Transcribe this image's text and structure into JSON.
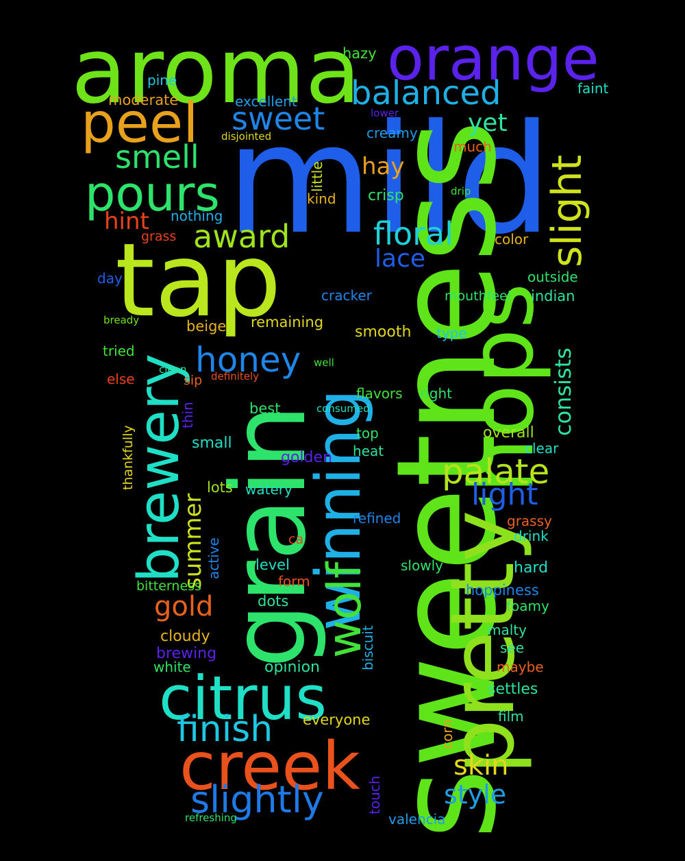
{
  "words": [
    {
      "text": "mild",
      "color": "#1f5ee8",
      "weight": 1.0
    },
    {
      "text": "sweetness",
      "color": "#5fe41a",
      "weight": 0.95
    },
    {
      "text": "aroma",
      "color": "#6ee31a",
      "weight": 0.85
    },
    {
      "text": "tap",
      "color": "#b9e61c",
      "weight": 0.85
    },
    {
      "text": "grain",
      "color": "#2ee36b",
      "weight": 0.85
    },
    {
      "text": "pretty",
      "color": "#8ee11c",
      "weight": 0.8
    },
    {
      "text": "hops",
      "color": "#5fe41a",
      "weight": 0.8
    },
    {
      "text": "orange",
      "color": "#5a22ea",
      "weight": 0.6
    },
    {
      "text": "creek",
      "color": "#e9521c",
      "weight": 0.6
    },
    {
      "text": "citrus",
      "color": "#1fe0c6",
      "weight": 0.6
    },
    {
      "text": "winning",
      "color": "#1fb0e6",
      "weight": 0.6
    },
    {
      "text": "brewery",
      "color": "#1fe0c6",
      "weight": 0.55
    },
    {
      "text": "peel",
      "color": "#e8a11c",
      "weight": 0.5
    },
    {
      "text": "wolf",
      "color": "#42e23a",
      "weight": 0.45
    },
    {
      "text": "pours",
      "color": "#2ee36b",
      "weight": 0.45
    },
    {
      "text": "slight",
      "color": "#cfe31c",
      "weight": 0.4
    },
    {
      "text": "slightly",
      "color": "#1f7ae8",
      "weight": 0.35
    },
    {
      "text": "balanced",
      "color": "#1fb0e6",
      "weight": 0.35
    },
    {
      "text": "finish",
      "color": "#1fc8e2",
      "weight": 0.35
    },
    {
      "text": "palate",
      "color": "#b6e41c",
      "weight": 0.33
    },
    {
      "text": "honey",
      "color": "#1f86e8",
      "weight": 0.33
    },
    {
      "text": "floral",
      "color": "#1fd0d8",
      "weight": 0.3
    },
    {
      "text": "sweet",
      "color": "#1f86e8",
      "weight": 0.3
    },
    {
      "text": "award",
      "color": "#9fe31c",
      "weight": 0.3
    },
    {
      "text": "smell",
      "color": "#2ee36b",
      "weight": 0.3
    },
    {
      "text": "light",
      "color": "#1f5ee8",
      "weight": 0.3
    },
    {
      "text": "skin",
      "color": "#e3d81c",
      "weight": 0.27
    },
    {
      "text": "style",
      "color": "#1f9ee8",
      "weight": 0.25
    },
    {
      "text": "gold",
      "color": "#e9621c",
      "weight": 0.25
    },
    {
      "text": "summer",
      "color": "#cfe31c",
      "weight": 0.25
    },
    {
      "text": "consists",
      "color": "#2ee3a0",
      "weight": 0.22
    },
    {
      "text": "lace",
      "color": "#1f5ee8",
      "weight": 0.23
    },
    {
      "text": "hint",
      "color": "#e9421c",
      "weight": 0.22
    },
    {
      "text": "hay",
      "color": "#e8a11c",
      "weight": 0.22
    },
    {
      "text": "yet",
      "color": "#2ee3a0",
      "weight": 0.22
    },
    {
      "text": "excellent",
      "color": "#1f9ee8",
      "weight": 0.12
    },
    {
      "text": "moderate",
      "color": "#e8a11c",
      "weight": 0.12
    },
    {
      "text": "pine",
      "color": "#1fc8e2",
      "weight": 0.12
    },
    {
      "text": "hazy",
      "color": "#42e23a",
      "weight": 0.12
    },
    {
      "text": "faint",
      "color": "#1fe0c6",
      "weight": 0.12
    },
    {
      "text": "creamy",
      "color": "#1f9ee8",
      "weight": 0.12
    },
    {
      "text": "lower",
      "color": "#5a22ea",
      "weight": 0.08
    },
    {
      "text": "disjointed",
      "color": "#e3d81c",
      "weight": 0.08
    },
    {
      "text": "much",
      "color": "#e9621c",
      "weight": 0.12
    },
    {
      "text": "little",
      "color": "#cfe31c",
      "weight": 0.12
    },
    {
      "text": "kind",
      "color": "#e8b31c",
      "weight": 0.12
    },
    {
      "text": "crisp",
      "color": "#2ee36b",
      "weight": 0.12
    },
    {
      "text": "drip",
      "color": "#42e23a",
      "weight": 0.08
    },
    {
      "text": "nothing",
      "color": "#1fb0e6",
      "weight": 0.12
    },
    {
      "text": "grass",
      "color": "#e9421c",
      "weight": 0.11
    },
    {
      "text": "color",
      "color": "#e8b31c",
      "weight": 0.11
    },
    {
      "text": "day",
      "color": "#1f5ee8",
      "weight": 0.11
    },
    {
      "text": "outside",
      "color": "#2ee36b",
      "weight": 0.12
    },
    {
      "text": "cracker",
      "color": "#1f86e8",
      "weight": 0.11
    },
    {
      "text": "mouthfeel",
      "color": "#2ee36b",
      "weight": 0.11
    },
    {
      "text": "indian",
      "color": "#2ee3a0",
      "weight": 0.12
    },
    {
      "text": "bready",
      "color": "#6ee31a",
      "weight": 0.08
    },
    {
      "text": "beige",
      "color": "#e8b31c",
      "weight": 0.12
    },
    {
      "text": "remaining",
      "color": "#e3d81c",
      "weight": 0.12
    },
    {
      "text": "smooth",
      "color": "#e3d81c",
      "weight": 0.12
    },
    {
      "text": "type",
      "color": "#1fc8e2",
      "weight": 0.11
    },
    {
      "text": "tried",
      "color": "#42e23a",
      "weight": 0.11
    },
    {
      "text": "well",
      "color": "#42e23a",
      "weight": 0.08
    },
    {
      "text": "else",
      "color": "#e9421c",
      "weight": 0.11
    },
    {
      "text": "clean",
      "color": "#2ee3a0",
      "weight": 0.08
    },
    {
      "text": "definitely",
      "color": "#e9521c",
      "weight": 0.08
    },
    {
      "text": "sip",
      "color": "#e9621c",
      "weight": 0.11
    },
    {
      "text": "flavors",
      "color": "#42e23a",
      "weight": 0.11
    },
    {
      "text": "right",
      "color": "#2ee36b",
      "weight": 0.11
    },
    {
      "text": "thin",
      "color": "#5a22ea",
      "weight": 0.11
    },
    {
      "text": "best",
      "color": "#2ee36b",
      "weight": 0.12
    },
    {
      "text": "consumed",
      "color": "#1fe0c6",
      "weight": 0.08
    },
    {
      "text": "thankfully",
      "color": "#e3d81c",
      "weight": 0.11
    },
    {
      "text": "top",
      "color": "#2ee36b",
      "weight": 0.11
    },
    {
      "text": "overall",
      "color": "#9fe31c",
      "weight": 0.12
    },
    {
      "text": "small",
      "color": "#1fe0c6",
      "weight": 0.12
    },
    {
      "text": "golden",
      "color": "#5a22ea",
      "weight": 0.12
    },
    {
      "text": "heat",
      "color": "#2ee3a0",
      "weight": 0.11
    },
    {
      "text": "clear",
      "color": "#1fe0c6",
      "weight": 0.11
    },
    {
      "text": "lots",
      "color": "#9fe31c",
      "weight": 0.12
    },
    {
      "text": "watery",
      "color": "#1fe0c6",
      "weight": 0.11
    },
    {
      "text": "refined",
      "color": "#1f86e8",
      "weight": 0.11
    },
    {
      "text": "grassy",
      "color": "#e9621c",
      "weight": 0.11
    },
    {
      "text": "drink",
      "color": "#1fe0c6",
      "weight": 0.11
    },
    {
      "text": "active",
      "color": "#1f86e8",
      "weight": 0.11
    },
    {
      "text": "ca",
      "color": "#e9421c",
      "weight": 0.11
    },
    {
      "text": "level",
      "color": "#1fe0c6",
      "weight": 0.12
    },
    {
      "text": "slowly",
      "color": "#2ee36b",
      "weight": 0.11
    },
    {
      "text": "hard",
      "color": "#1fe0c6",
      "weight": 0.12
    },
    {
      "text": "form",
      "color": "#e9521c",
      "weight": 0.11
    },
    {
      "text": "bitterness",
      "color": "#42e23a",
      "weight": 0.11
    },
    {
      "text": "hoppiness",
      "color": "#1f86e8",
      "weight": 0.12
    },
    {
      "text": "dots",
      "color": "#2ee3a0",
      "weight": 0.11
    },
    {
      "text": "foamy",
      "color": "#2ee36b",
      "weight": 0.11
    },
    {
      "text": "biscuit",
      "color": "#1fb0e6",
      "weight": 0.11
    },
    {
      "text": "malty",
      "color": "#2ee3a0",
      "weight": 0.11
    },
    {
      "text": "cloudy",
      "color": "#e8b31c",
      "weight": 0.12
    },
    {
      "text": "brewing",
      "color": "#5a22ea",
      "weight": 0.12
    },
    {
      "text": "see",
      "color": "#2ee3a0",
      "weight": 0.11
    },
    {
      "text": "white",
      "color": "#2ee36b",
      "weight": 0.11
    },
    {
      "text": "opinion",
      "color": "#2ee3a0",
      "weight": 0.12
    },
    {
      "text": "maybe",
      "color": "#e9621c",
      "weight": 0.11
    },
    {
      "text": "settles",
      "color": "#2ee3a0",
      "weight": 0.12
    },
    {
      "text": "everyone",
      "color": "#e3d81c",
      "weight": 0.12
    },
    {
      "text": "film",
      "color": "#2ee3a0",
      "weight": 0.11
    },
    {
      "text": "corn",
      "color": "#e8a11c",
      "weight": 0.11
    },
    {
      "text": "touch",
      "color": "#5a22ea",
      "weight": 0.11
    },
    {
      "text": "refreshing",
      "color": "#2ee36b",
      "weight": 0.08
    },
    {
      "text": "valencia",
      "color": "#1f9ee8",
      "weight": 0.11
    }
  ]
}
